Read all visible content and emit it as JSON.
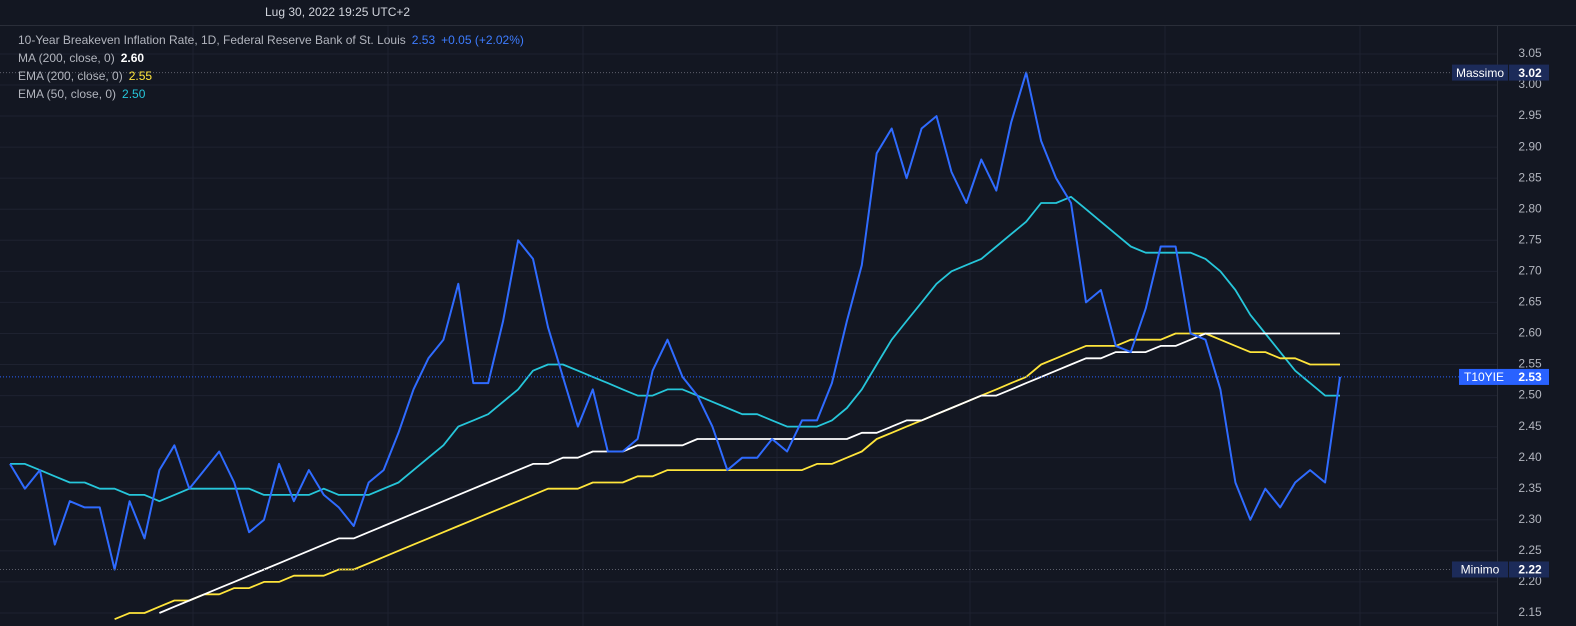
{
  "chart_data": {
    "type": "line",
    "subtitle": "Lug 30, 2022 19:25 UTC+2",
    "categories": [
      null,
      null,
      null,
      null,
      null,
      null,
      null,
      null,
      null,
      null,
      null,
      null,
      null,
      null,
      null,
      null,
      null,
      null,
      null,
      null,
      null,
      null,
      null,
      null,
      null,
      null,
      null,
      null,
      null,
      null,
      null,
      null,
      null,
      null,
      null,
      null,
      null,
      null,
      null,
      null,
      null,
      null,
      null,
      null,
      null,
      null,
      null,
      null,
      null,
      null,
      null,
      null,
      null,
      null,
      null,
      null,
      null,
      null,
      null,
      null,
      null,
      null,
      null,
      null,
      null,
      null,
      null,
      null,
      null,
      null,
      null,
      null,
      null,
      null,
      null,
      null,
      null,
      null,
      null,
      null,
      null,
      null,
      null,
      null,
      null,
      null,
      null,
      null,
      null,
      null
    ],
    "series": [
      {
        "name": "10-Year Breakeven Inflation Rate, 1D, Federal Reserve Bank of St. Louis",
        "color": "#2f6bff",
        "last": 2.53,
        "change": {
          "value": 0.05,
          "label": "+0.05 (+2.02%)"
        },
        "values": [
          2.39,
          2.35,
          2.38,
          2.26,
          2.33,
          2.32,
          2.32,
          2.22,
          2.33,
          2.27,
          2.38,
          2.42,
          2.35,
          2.38,
          2.41,
          2.36,
          2.28,
          2.3,
          2.39,
          2.33,
          2.38,
          2.34,
          2.32,
          2.29,
          2.36,
          2.38,
          2.44,
          2.51,
          2.56,
          2.59,
          2.68,
          2.52,
          2.52,
          2.62,
          2.75,
          2.72,
          2.61,
          2.53,
          2.45,
          2.51,
          2.41,
          2.41,
          2.43,
          2.54,
          2.59,
          2.53,
          2.5,
          2.45,
          2.38,
          2.4,
          2.4,
          2.43,
          2.41,
          2.46,
          2.46,
          2.52,
          2.62,
          2.71,
          2.89,
          2.93,
          2.85,
          2.93,
          2.95,
          2.86,
          2.81,
          2.88,
          2.83,
          2.94,
          3.02,
          2.91,
          2.85,
          2.81,
          2.65,
          2.67,
          2.58,
          2.57,
          2.64,
          2.74,
          2.74,
          2.6,
          2.59,
          2.51,
          2.36,
          2.3,
          2.35,
          2.32,
          2.36,
          2.38,
          2.36,
          2.53
        ]
      },
      {
        "name": "MA (200, close, 0)",
        "color": "#ffffff",
        "last": {
          "value": 2.6,
          "label": "2.60"
        },
        "values": [
          null,
          null,
          null,
          null,
          null,
          null,
          null,
          null,
          null,
          null,
          2.15,
          2.16,
          2.17,
          2.18,
          2.19,
          2.2,
          2.21,
          2.22,
          2.23,
          2.24,
          2.25,
          2.26,
          2.27,
          2.27,
          2.28,
          2.29,
          2.3,
          2.31,
          2.32,
          2.33,
          2.34,
          2.35,
          2.36,
          2.37,
          2.38,
          2.39,
          2.39,
          2.4,
          2.4,
          2.41,
          2.41,
          2.41,
          2.42,
          2.42,
          2.42,
          2.42,
          2.43,
          2.43,
          2.43,
          2.43,
          2.43,
          2.43,
          2.43,
          2.43,
          2.43,
          2.43,
          2.43,
          2.44,
          2.44,
          2.45,
          2.46,
          2.46,
          2.47,
          2.48,
          2.49,
          2.5,
          2.5,
          2.51,
          2.52,
          2.53,
          2.54,
          2.55,
          2.56,
          2.56,
          2.57,
          2.57,
          2.57,
          2.58,
          2.58,
          2.59,
          2.6,
          2.6,
          2.6,
          2.6,
          2.6,
          2.6,
          2.6,
          2.6,
          2.6,
          2.6
        ]
      },
      {
        "name": "EMA (200, close, 0)",
        "color": "#ffe53b",
        "last": 2.55,
        "values": [
          null,
          null,
          null,
          null,
          null,
          null,
          null,
          2.14,
          2.15,
          2.15,
          2.16,
          2.17,
          2.17,
          2.18,
          2.18,
          2.19,
          2.19,
          2.2,
          2.2,
          2.21,
          2.21,
          2.21,
          2.22,
          2.22,
          2.23,
          2.24,
          2.25,
          2.26,
          2.27,
          2.28,
          2.29,
          2.3,
          2.31,
          2.32,
          2.33,
          2.34,
          2.35,
          2.35,
          2.35,
          2.36,
          2.36,
          2.36,
          2.37,
          2.37,
          2.38,
          2.38,
          2.38,
          2.38,
          2.38,
          2.38,
          2.38,
          2.38,
          2.38,
          2.38,
          2.39,
          2.39,
          2.4,
          2.41,
          2.43,
          2.44,
          2.45,
          2.46,
          2.47,
          2.48,
          2.49,
          2.5,
          2.51,
          2.52,
          2.53,
          2.55,
          2.56,
          2.57,
          2.58,
          2.58,
          2.58,
          2.59,
          2.59,
          2.59,
          2.6,
          2.6,
          2.6,
          2.59,
          2.58,
          2.57,
          2.57,
          2.56,
          2.56,
          2.55,
          2.55,
          2.55
        ]
      },
      {
        "name": "EMA (50, close, 0)",
        "color": "#26c6da",
        "last": {
          "value": 2.5,
          "label": "2.50"
        },
        "values": [
          2.39,
          2.39,
          2.38,
          2.37,
          2.36,
          2.36,
          2.35,
          2.35,
          2.34,
          2.34,
          2.33,
          2.34,
          2.35,
          2.35,
          2.35,
          2.35,
          2.35,
          2.34,
          2.34,
          2.34,
          2.34,
          2.35,
          2.34,
          2.34,
          2.34,
          2.35,
          2.36,
          2.38,
          2.4,
          2.42,
          2.45,
          2.46,
          2.47,
          2.49,
          2.51,
          2.54,
          2.55,
          2.55,
          2.54,
          2.53,
          2.52,
          2.51,
          2.5,
          2.5,
          2.51,
          2.51,
          2.5,
          2.49,
          2.48,
          2.47,
          2.47,
          2.46,
          2.45,
          2.45,
          2.45,
          2.46,
          2.48,
          2.51,
          2.55,
          2.59,
          2.62,
          2.65,
          2.68,
          2.7,
          2.71,
          2.72,
          2.74,
          2.76,
          2.78,
          2.81,
          2.81,
          2.82,
          2.8,
          2.78,
          2.76,
          2.74,
          2.73,
          2.73,
          2.73,
          2.73,
          2.72,
          2.7,
          2.67,
          2.63,
          2.6,
          2.57,
          2.54,
          2.52,
          2.5,
          2.5
        ]
      }
    ],
    "markers": [
      {
        "label": "Massimo",
        "value": 3.02,
        "color": "#1c2b59"
      },
      {
        "label": "T10YIE",
        "value": 2.53,
        "color": "#2962ff"
      },
      {
        "label": "Minimo",
        "value": 2.22,
        "color": "#1c2b59"
      }
    ],
    "ylim": [
      2.129,
      3.095
    ],
    "yticks": [
      2.15,
      {
        "value": 2.2,
        "label": "2.20"
      },
      2.25,
      {
        "value": 2.3,
        "label": "2.30"
      },
      2.35,
      {
        "value": 2.4,
        "label": "2.40"
      },
      2.45,
      {
        "value": 2.5,
        "label": "2.50"
      },
      2.55,
      {
        "value": 2.6,
        "label": "2.60"
      },
      2.65,
      {
        "value": 2.7,
        "label": "2.70"
      },
      2.75,
      {
        "value": 2.8,
        "label": "2.80"
      },
      2.85,
      {
        "value": 2.9,
        "label": "2.90"
      },
      2.95,
      {
        "value": 3,
        "label": "3.00"
      },
      3.05
    ],
    "grid": true
  }
}
